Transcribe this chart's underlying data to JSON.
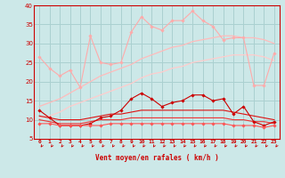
{
  "x": [
    0,
    1,
    2,
    3,
    4,
    5,
    6,
    7,
    8,
    9,
    10,
    11,
    12,
    13,
    14,
    15,
    16,
    17,
    18,
    19,
    20,
    21,
    22,
    23
  ],
  "series": [
    {
      "color": "#ffaaaa",
      "lw": 0.8,
      "marker": "D",
      "ms": 1.8,
      "y": [
        26.5,
        23.5,
        21.5,
        23.0,
        18.5,
        32.0,
        25.0,
        24.5,
        25.0,
        33.0,
        37.0,
        34.5,
        33.5,
        36.0,
        36.0,
        38.5,
        36.0,
        34.5,
        31.0,
        31.5,
        31.5,
        19.0,
        19.0,
        27.5
      ]
    },
    {
      "color": "#ffbbbb",
      "lw": 0.9,
      "marker": null,
      "ms": 0,
      "y": [
        13.5,
        14.5,
        15.5,
        17.0,
        18.5,
        20.0,
        21.5,
        22.5,
        23.5,
        24.5,
        26.0,
        27.0,
        28.0,
        29.0,
        29.5,
        30.5,
        31.0,
        31.5,
        32.0,
        32.0,
        31.5,
        31.5,
        31.0,
        30.0
      ]
    },
    {
      "color": "#ffcccc",
      "lw": 0.9,
      "marker": null,
      "ms": 0,
      "y": [
        10.5,
        11.0,
        12.0,
        13.5,
        14.5,
        15.5,
        16.5,
        17.5,
        18.5,
        19.5,
        21.0,
        22.0,
        22.5,
        23.5,
        24.0,
        25.0,
        25.5,
        26.0,
        26.5,
        27.0,
        27.0,
        27.0,
        26.5,
        25.5
      ]
    },
    {
      "color": "#cc0000",
      "lw": 0.8,
      "marker": "D",
      "ms": 1.8,
      "y": [
        12.5,
        10.5,
        8.5,
        8.5,
        8.5,
        9.0,
        10.5,
        11.0,
        12.5,
        15.5,
        17.0,
        15.5,
        13.5,
        14.5,
        15.0,
        16.5,
        16.5,
        15.0,
        15.5,
        11.5,
        13.5,
        9.5,
        8.5,
        9.5
      ]
    },
    {
      "color": "#dd1111",
      "lw": 0.8,
      "marker": null,
      "ms": 0,
      "y": [
        11.0,
        10.5,
        10.0,
        10.0,
        10.0,
        10.5,
        11.0,
        11.5,
        11.5,
        12.0,
        12.5,
        12.5,
        12.5,
        12.5,
        12.5,
        12.5,
        12.5,
        12.5,
        12.5,
        12.0,
        11.5,
        11.0,
        10.5,
        10.0
      ]
    },
    {
      "color": "#ee3333",
      "lw": 0.8,
      "marker": null,
      "ms": 0,
      "y": [
        10.0,
        9.5,
        9.0,
        9.0,
        9.0,
        9.5,
        10.0,
        10.0,
        10.0,
        10.5,
        10.5,
        10.5,
        10.5,
        10.5,
        10.5,
        10.5,
        10.5,
        10.5,
        10.5,
        10.0,
        10.0,
        9.5,
        9.5,
        9.0
      ]
    },
    {
      "color": "#ff5555",
      "lw": 0.8,
      "marker": "D",
      "ms": 1.8,
      "y": [
        9.0,
        9.0,
        8.5,
        8.5,
        8.5,
        8.5,
        8.5,
        9.0,
        9.0,
        9.0,
        9.0,
        9.0,
        9.0,
        9.0,
        9.0,
        9.0,
        9.0,
        9.0,
        9.0,
        8.5,
        8.5,
        8.5,
        8.0,
        8.5
      ]
    }
  ],
  "xlabel": "Vent moyen/en rafales ( km/h )",
  "ylim": [
    5,
    40
  ],
  "yticks": [
    5,
    10,
    15,
    20,
    25,
    30,
    35,
    40
  ],
  "xticks": [
    0,
    1,
    2,
    3,
    4,
    5,
    6,
    7,
    8,
    9,
    10,
    11,
    12,
    13,
    14,
    15,
    16,
    17,
    18,
    19,
    20,
    21,
    22,
    23
  ],
  "bg_color": "#cce8e8",
  "grid_color": "#aad0d0",
  "text_color": "#cc0000",
  "spine_color": "#cc0000"
}
